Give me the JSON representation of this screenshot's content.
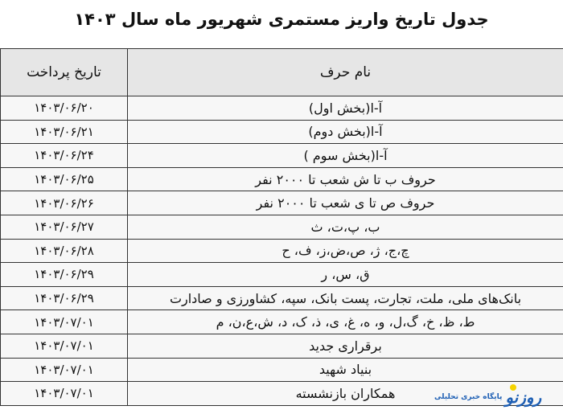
{
  "title": "جدول تاریخ واریز مستمری شهریور ماه سال ۱۴۰۳",
  "headers": {
    "name": "نام حرف",
    "date": "تاریخ پرداخت"
  },
  "rows": [
    {
      "name": "آ-ا(بخش اول)",
      "date": "۱۴۰۳/۰۶/۲۰"
    },
    {
      "name": "آ-ا(بخش دوم)",
      "date": "۱۴۰۳/۰۶/۲۱"
    },
    {
      "name": "آ-ا(بخش سوم )",
      "date": "۱۴۰۳/۰۶/۲۴"
    },
    {
      "name": "حروف ب تا ش شعب تا ۲۰۰۰ نفر",
      "date": "۱۴۰۳/۰۶/۲۵"
    },
    {
      "name": "حروف ص تا ی  شعب تا ۲۰۰۰ نفر",
      "date": "۱۴۰۳/۰۶/۲۶"
    },
    {
      "name": "ب، پ،ت، ث",
      "date": "۱۴۰۳/۰۶/۲۷"
    },
    {
      "name": "چ،ج، ژ، ص،ض،ز، ف، ح",
      "date": "۱۴۰۳/۰۶/۲۸"
    },
    {
      "name": "ق، س، ر",
      "date": "۱۴۰۳/۰۶/۲۹"
    },
    {
      "name": "بانک‌های ملی، ملت، تجارت، پست بانک، سپه، کشاورزی و صادارت",
      "date": "۱۴۰۳/۰۶/۲۹"
    },
    {
      "name": "ط، ظ، خ، گ،ل، و، ه، غ، ی، ذ، ک، د، ش،ع،ن، م",
      "date": "۱۴۰۳/۰۷/۰۱"
    },
    {
      "name": "برقراری جدید",
      "date": "۱۴۰۳/۰۷/۰۱"
    },
    {
      "name": "بنیاد شهید",
      "date": "۱۴۰۳/۰۷/۰۱"
    },
    {
      "name": "همکاران بازنشسته",
      "date": "۱۴۰۳/۰۷/۰۱"
    }
  ],
  "watermark": {
    "logo": "روزنو",
    "tagline": "پایگاه خبری تحلیلی",
    "color": "#1e5fb4"
  }
}
